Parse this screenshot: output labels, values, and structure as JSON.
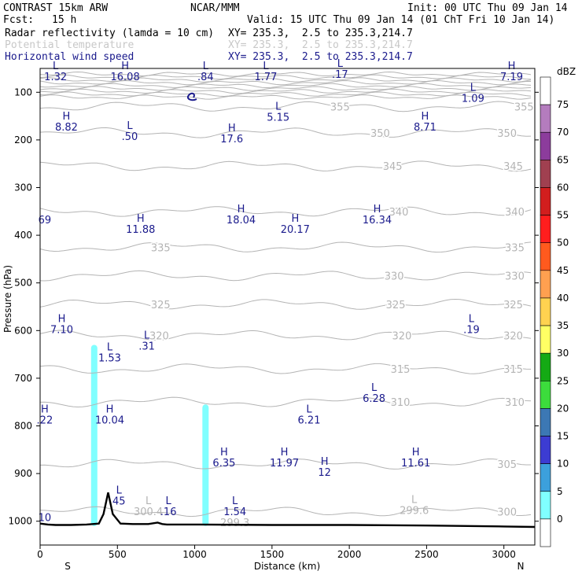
{
  "header": {
    "model": "CONTRAST 15km ARW",
    "org": "NCAR/MMM",
    "init": "Init: 00 UTC Thu 09 Jan 14",
    "fcst_label": "Fcst:",
    "fcst_value": "15 h",
    "valid": "Valid: 15 UTC Thu 09 Jan 14 (01 ChT Fri 10 Jan 14)",
    "fields": [
      {
        "name": "Radar reflectivity (lamda = 10 cm)",
        "xy": "XY= 235.3,  2.5 to 235.3,214.7"
      },
      {
        "name": "Potential temperature",
        "xy": "XY= 235.3,  2.5 to 235.3,214.7"
      },
      {
        "name": "Horizontal wind speed",
        "xy": "XY= 235.3,  2.5 to 235.3,214.7"
      }
    ]
  },
  "colors": {
    "wind": "#1a1a8c",
    "theta": "#b4b4b4",
    "radar_echo": "#80ffff",
    "terrain": "#000000"
  },
  "chart_data": {
    "type": "cross-section",
    "xlabel": "Distance (km)",
    "ylabel": "Pressure (hPa)",
    "xlim": [
      0,
      3200
    ],
    "ylim": [
      1050,
      50
    ],
    "x_ticks": [
      0,
      500,
      1000,
      1500,
      2000,
      2500,
      3000
    ],
    "y_ticks": [
      100,
      200,
      300,
      400,
      500,
      600,
      700,
      800,
      900,
      1000
    ],
    "x_end_labels": {
      "left": "S",
      "right": "N"
    },
    "theta_contours": [
      {
        "label": "355",
        "p": 130,
        "label_x": [
          1940,
          3130
        ]
      },
      {
        "label": "350",
        "p": 185,
        "label_x": [
          2200,
          3020
        ]
      },
      {
        "label": "345",
        "p": 255,
        "label_x": [
          2280,
          3060
        ]
      },
      {
        "label": "340",
        "p": 350,
        "label_x": [
          2320,
          3070
        ]
      },
      {
        "label": "335",
        "p": 425,
        "label_x": [
          780,
          3070
        ]
      },
      {
        "label": "330",
        "p": 485,
        "label_x": [
          2290,
          3070
        ]
      },
      {
        "label": "325",
        "p": 545,
        "label_x": [
          780,
          2300,
          3060
        ]
      },
      {
        "label": "320",
        "p": 610,
        "label_x": [
          770,
          2340,
          3060
        ]
      },
      {
        "label": "315",
        "p": 680,
        "label_x": [
          2330,
          3060
        ]
      },
      {
        "label": "310",
        "p": 750,
        "label_x": [
          2330,
          3070
        ]
      },
      {
        "label": "305",
        "p": 880,
        "label_x": [
          3020
        ]
      },
      {
        "label": "300",
        "p": 980,
        "label_x": [
          3020
        ]
      }
    ],
    "theta_marks": [
      {
        "kind": "L",
        "value": "300.4",
        "x": 700,
        "p": 987
      },
      {
        "kind": "L",
        "value": "299.6",
        "x": 2420,
        "p": 985
      },
      {
        "kind": "",
        "value": "299.3",
        "x": 1260,
        "p": 1010
      }
    ],
    "wind_marks": [
      {
        "kind": "L",
        "value": "1.32",
        "x": 100,
        "p": 75
      },
      {
        "kind": "H",
        "value": "16.08",
        "x": 550,
        "p": 75
      },
      {
        "kind": "L",
        "value": ".84",
        "x": 1070,
        "p": 75
      },
      {
        "kind": "L",
        "value": "1.77",
        "x": 1460,
        "p": 75
      },
      {
        "kind": "L",
        "value": ".17",
        "x": 1940,
        "p": 70
      },
      {
        "kind": "H",
        "value": "7.19",
        "x": 3050,
        "p": 75
      },
      {
        "kind": "L",
        "value": "1.09",
        "x": 2800,
        "p": 120
      },
      {
        "kind": "L",
        "value": "5.15",
        "x": 1540,
        "p": 160
      },
      {
        "kind": "H",
        "value": "8.82",
        "x": 170,
        "p": 180
      },
      {
        "kind": "L",
        "value": ".50",
        "x": 580,
        "p": 200
      },
      {
        "kind": "H",
        "value": "17.6",
        "x": 1240,
        "p": 205
      },
      {
        "kind": "H",
        "value": "8.71",
        "x": 2490,
        "p": 180
      },
      {
        "kind": "",
        "value": "69",
        "x": 30,
        "p": 375
      },
      {
        "kind": "H",
        "value": "11.88",
        "x": 650,
        "p": 395
      },
      {
        "kind": "H",
        "value": "18.04",
        "x": 1300,
        "p": 375
      },
      {
        "kind": "H",
        "value": "20.17",
        "x": 1650,
        "p": 395
      },
      {
        "kind": "H",
        "value": "16.34",
        "x": 2180,
        "p": 375
      },
      {
        "kind": "H",
        "value": "7.10",
        "x": 140,
        "p": 605
      },
      {
        "kind": "L",
        "value": ".19",
        "x": 2790,
        "p": 605
      },
      {
        "kind": "L",
        "value": "1.53",
        "x": 450,
        "p": 665
      },
      {
        "kind": "L",
        "value": ".31",
        "x": 690,
        "p": 640
      },
      {
        "kind": "L",
        "value": "6.28",
        "x": 2160,
        "p": 750
      },
      {
        "kind": "H",
        "value": ".22",
        "x": 30,
        "p": 795
      },
      {
        "kind": "H",
        "value": "10.04",
        "x": 450,
        "p": 795
      },
      {
        "kind": "L",
        "value": "6.21",
        "x": 1740,
        "p": 795
      },
      {
        "kind": "H",
        "value": "6.35",
        "x": 1190,
        "p": 885
      },
      {
        "kind": "H",
        "value": "11.97",
        "x": 1580,
        "p": 885
      },
      {
        "kind": "H",
        "value": "12",
        "x": 1840,
        "p": 905
      },
      {
        "kind": "H",
        "value": "11.61",
        "x": 2430,
        "p": 885
      },
      {
        "kind": "L",
        "value": "45",
        "x": 510,
        "p": 965
      },
      {
        "kind": "L",
        "value": ".16",
        "x": 830,
        "p": 987
      },
      {
        "kind": "L",
        "value": "1.54",
        "x": 1260,
        "p": 987
      },
      {
        "kind": "",
        "value": "10",
        "x": 30,
        "p": 1000
      }
    ],
    "radar_echoes": [
      {
        "x": 350,
        "p_top": 630,
        "p_bottom": 1010,
        "dbz_band": "5-10"
      },
      {
        "x": 1070,
        "p_top": 755,
        "p_bottom": 1010,
        "dbz_band": "5-10"
      }
    ],
    "terrain": {
      "x": [
        0,
        50,
        100,
        200,
        300,
        380,
        410,
        440,
        470,
        520,
        600,
        700,
        760,
        790,
        820,
        1000,
        1500,
        2000,
        2500,
        3000,
        3200
      ],
      "p": [
        1005,
        1007,
        1008,
        1008,
        1007,
        1005,
        985,
        940,
        985,
        1005,
        1006,
        1006,
        1003,
        1006,
        1007,
        1007,
        1008,
        1008,
        1009,
        1011,
        1012
      ]
    },
    "colorbar": {
      "unit": "dBZ",
      "levels": [
        "75",
        "70",
        "65",
        "60",
        "55",
        "50",
        "45",
        "40",
        "35",
        "30",
        "25",
        "20",
        "15",
        "10",
        "5",
        "0"
      ],
      "colors": [
        "#ffffff",
        "#b47cbe",
        "#8c3c9c",
        "#a04050",
        "#d21e1e",
        "#ff1e1e",
        "#ff5a1e",
        "#ffa050",
        "#ffd250",
        "#ffff64",
        "#14aa14",
        "#3cdc3c",
        "#3c78b4",
        "#3c3cd2",
        "#3ca0dc",
        "#80ffff",
        "#ffffff"
      ]
    }
  }
}
